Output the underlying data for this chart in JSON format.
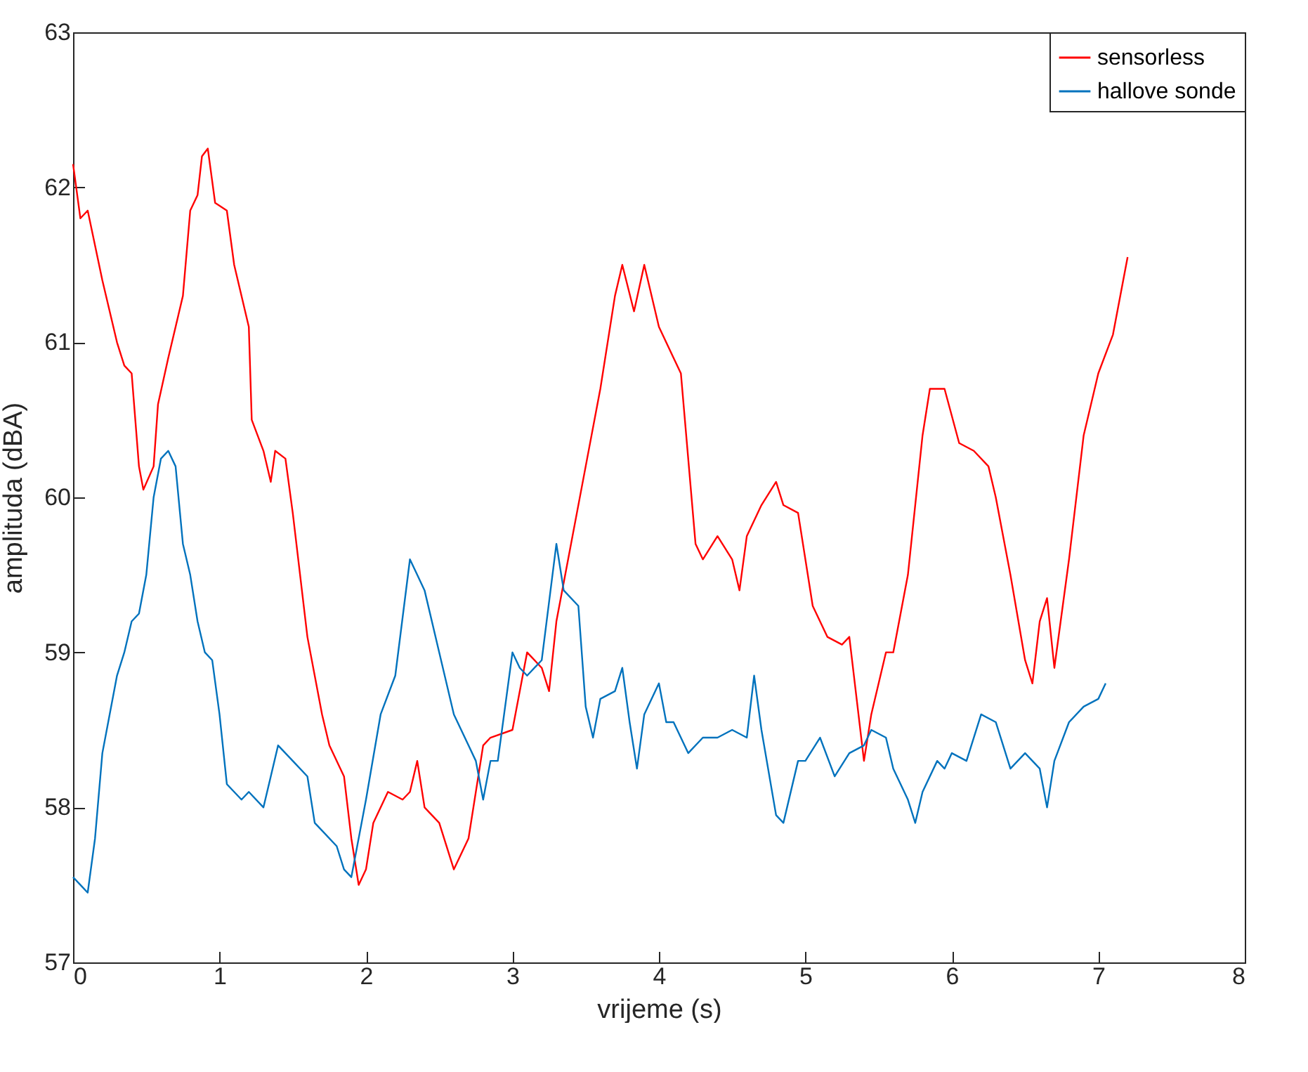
{
  "chart_data": {
    "type": "line",
    "xlabel": "vrijeme (s)",
    "ylabel": "amplituda (dBA)",
    "xlim": [
      0,
      8
    ],
    "xticks": [
      0,
      1,
      2,
      3,
      4,
      5,
      6,
      7,
      8
    ],
    "ylim": [
      57,
      63
    ],
    "yticks": [
      57,
      58,
      59,
      60,
      61,
      62,
      63
    ],
    "grid": false,
    "legend": "top right",
    "series": [
      {
        "name": "sensorless",
        "color": "#ff0000",
        "x": [
          0,
          0.05,
          0.1,
          0.2,
          0.3,
          0.35,
          0.4,
          0.45,
          0.48,
          0.55,
          0.58,
          0.65,
          0.75,
          0.8,
          0.85,
          0.88,
          0.92,
          0.97,
          1.05,
          1.1,
          1.2,
          1.22,
          1.3,
          1.35,
          1.38,
          1.45,
          1.5,
          1.6,
          1.7,
          1.75,
          1.85,
          1.9,
          1.95,
          2.0,
          2.05,
          2.15,
          2.25,
          2.3,
          2.35,
          2.4,
          2.5,
          2.6,
          2.7,
          2.8,
          2.85,
          3.0,
          3.1,
          3.2,
          3.25,
          3.3,
          3.4,
          3.5,
          3.6,
          3.7,
          3.75,
          3.83,
          3.9,
          4.0,
          4.1,
          4.15,
          4.25,
          4.3,
          4.4,
          4.5,
          4.55,
          4.6,
          4.7,
          4.8,
          4.85,
          4.95,
          5.05,
          5.15,
          5.25,
          5.3,
          5.4,
          5.45,
          5.55,
          5.6,
          5.7,
          5.8,
          5.85,
          5.95,
          6.05,
          6.15,
          6.25,
          6.3,
          6.4,
          6.5,
          6.55,
          6.6,
          6.65,
          6.7,
          6.8,
          6.9,
          7.0,
          7.1,
          7.2
        ],
        "values": [
          62.15,
          61.8,
          61.85,
          61.4,
          61.0,
          60.85,
          60.8,
          60.2,
          60.05,
          60.2,
          60.6,
          60.9,
          61.3,
          61.85,
          61.95,
          62.2,
          62.25,
          61.9,
          61.85,
          61.5,
          61.1,
          60.5,
          60.3,
          60.1,
          60.3,
          60.25,
          59.9,
          59.1,
          58.6,
          58.4,
          58.2,
          57.8,
          57.5,
          57.6,
          57.9,
          58.1,
          58.05,
          58.1,
          58.3,
          58.0,
          57.9,
          57.6,
          57.8,
          58.4,
          58.45,
          58.5,
          59.0,
          58.9,
          58.75,
          59.2,
          59.7,
          60.2,
          60.7,
          61.3,
          61.5,
          61.2,
          61.5,
          61.1,
          60.9,
          60.8,
          59.7,
          59.6,
          59.75,
          59.6,
          59.4,
          59.75,
          59.95,
          60.1,
          59.95,
          59.9,
          59.3,
          59.1,
          59.05,
          59.1,
          58.3,
          58.6,
          59.0,
          59.0,
          59.5,
          60.4,
          60.7,
          60.7,
          60.35,
          60.3,
          60.2,
          60.0,
          59.5,
          58.95,
          58.8,
          59.2,
          59.35,
          58.9,
          59.6,
          60.4,
          60.8,
          61.05,
          61.55
        ]
      },
      {
        "name": "hallove sonde",
        "color": "#0072bd",
        "x": [
          0,
          0.05,
          0.1,
          0.15,
          0.2,
          0.3,
          0.35,
          0.4,
          0.45,
          0.5,
          0.55,
          0.6,
          0.65,
          0.7,
          0.75,
          0.8,
          0.85,
          0.9,
          0.95,
          1.0,
          1.05,
          1.1,
          1.15,
          1.2,
          1.3,
          1.35,
          1.4,
          1.5,
          1.6,
          1.65,
          1.7,
          1.8,
          1.85,
          1.9,
          2.0,
          2.1,
          2.2,
          2.3,
          2.35,
          2.4,
          2.5,
          2.6,
          2.7,
          2.75,
          2.8,
          2.85,
          2.9,
          3.0,
          3.05,
          3.1,
          3.2,
          3.3,
          3.35,
          3.45,
          3.5,
          3.55,
          3.6,
          3.7,
          3.75,
          3.8,
          3.85,
          3.9,
          4.0,
          4.05,
          4.1,
          4.2,
          4.3,
          4.4,
          4.5,
          4.6,
          4.65,
          4.7,
          4.8,
          4.85,
          4.95,
          5.0,
          5.1,
          5.2,
          5.3,
          5.4,
          5.45,
          5.55,
          5.6,
          5.7,
          5.75,
          5.8,
          5.9,
          5.95,
          6.0,
          6.1,
          6.2,
          6.3,
          6.4,
          6.5,
          6.6,
          6.65,
          6.7,
          6.8,
          6.9,
          7.0,
          7.05
        ],
        "values": [
          57.55,
          57.5,
          57.45,
          57.8,
          58.35,
          58.85,
          59.0,
          59.2,
          59.25,
          59.5,
          60.0,
          60.25,
          60.3,
          60.2,
          59.7,
          59.5,
          59.2,
          59.0,
          58.95,
          58.6,
          58.15,
          58.1,
          58.05,
          58.1,
          58.0,
          58.2,
          58.4,
          58.3,
          58.2,
          57.9,
          57.85,
          57.75,
          57.6,
          57.55,
          58.05,
          58.6,
          58.85,
          59.6,
          59.5,
          59.4,
          59.0,
          58.6,
          58.4,
          58.3,
          58.05,
          58.3,
          58.3,
          59.0,
          58.9,
          58.85,
          58.95,
          59.7,
          59.4,
          59.3,
          58.65,
          58.45,
          58.7,
          58.75,
          58.9,
          58.55,
          58.25,
          58.6,
          58.8,
          58.55,
          58.55,
          58.35,
          58.45,
          58.45,
          58.5,
          58.45,
          58.85,
          58.5,
          57.95,
          57.9,
          58.3,
          58.3,
          58.45,
          58.2,
          58.35,
          58.4,
          58.5,
          58.45,
          58.25,
          58.05,
          57.9,
          58.1,
          58.3,
          58.25,
          58.35,
          58.3,
          58.6,
          58.55,
          58.25,
          58.35,
          58.25,
          58.0,
          58.3,
          58.55,
          58.65,
          58.7,
          58.8
        ]
      }
    ]
  }
}
